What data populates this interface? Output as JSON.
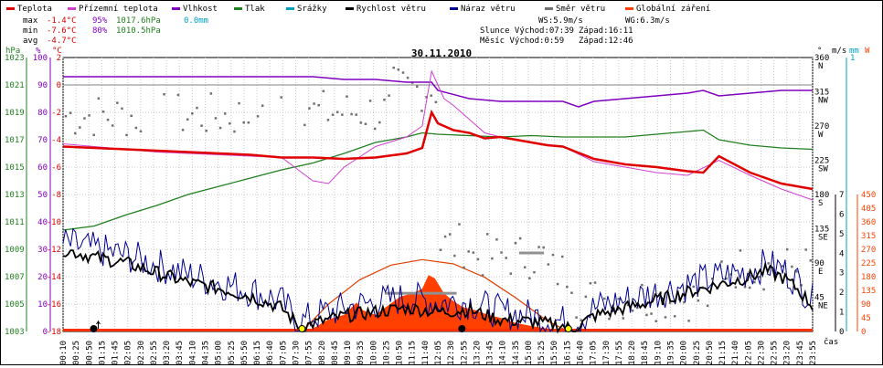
{
  "chart_data": {
    "type": "line",
    "title": "30.11.2010",
    "legend": [
      {
        "label": "Teplota",
        "color": "#e00000"
      },
      {
        "label": "Přízemní teplota",
        "color": "#d040d0"
      },
      {
        "label": "Vlhkost",
        "color": "#8000c0"
      },
      {
        "label": "Tlak",
        "color": "#208020"
      },
      {
        "label": "Srážky",
        "color": "#00a0c0"
      },
      {
        "label": "Rychlost větru",
        "color": "#000000"
      },
      {
        "label": "Náraz větru",
        "color": "#000090"
      },
      {
        "label": "Směr větru",
        "color": "#707070"
      },
      {
        "label": "Globální záření",
        "color": "#ff4000"
      }
    ],
    "stats": {
      "max": {
        "label": "max",
        "temp": "-1.4°C",
        "hum": "95%",
        "press": "1017.6hPa",
        "rain": "0.0mm"
      },
      "min": {
        "label": "min",
        "temp": "-7.6°C",
        "hum": "80%",
        "press": "1010.5hPa"
      },
      "avg": {
        "label": "avg",
        "temp": "-4.7°C"
      }
    },
    "info": {
      "ws": "WS:5.9m/s",
      "wg": "WG:6.3m/s",
      "sun_rise": "Slunce Východ:07:39",
      "sun_set": "Západ:16:11",
      "moon_rise": "Měsíc  Východ:0:59",
      "moon_set": "Západ:12:46"
    },
    "axes": {
      "hpa_unit": "hPa",
      "pct_unit": "%",
      "temp_unit": "°C",
      "hpa_ticks": [
        "1023",
        "1021",
        "1019",
        "1017",
        "1015",
        "1013",
        "1011",
        "1009",
        "1007",
        "1005",
        "1003"
      ],
      "pct_ticks": [
        "100",
        "90",
        "80",
        "70",
        "60",
        "50",
        "40",
        "30",
        "20",
        "10",
        "0"
      ],
      "temp_ticks": [
        "2",
        "0",
        "-2",
        "-4",
        "-6",
        "-8",
        "-10",
        "-12",
        "-14",
        "-16",
        "-18"
      ],
      "right_deg_unit": "°",
      "right_ms_unit": "m/s",
      "right_mm_unit": "mm",
      "right_w_unit": "W",
      "deg_ticks": [
        [
          "360",
          "N"
        ],
        [
          "315",
          "NW"
        ],
        [
          "270",
          "W"
        ],
        [
          "225",
          "SW"
        ],
        [
          "180",
          "S"
        ],
        [
          "135",
          "SE"
        ],
        [
          "90",
          "E"
        ],
        [
          "45",
          "NE"
        ]
      ],
      "ms_ticks": [
        "7",
        "6",
        "5",
        "4",
        "3",
        "2",
        "1",
        "0"
      ],
      "mm_ticks": [
        "1"
      ],
      "w_ticks": [
        "450",
        "405",
        "360",
        "315",
        "270",
        "225",
        "180",
        "135",
        "90",
        "45",
        "0"
      ],
      "x_label": "čas",
      "x_ticks": [
        "00:10",
        "00:25",
        "00:50",
        "01:15",
        "01:45",
        "02:05",
        "02:30",
        "02:55",
        "03:20",
        "03:45",
        "04:10",
        "04:35",
        "05:00",
        "05:25",
        "05:50",
        "06:15",
        "06:40",
        "07:05",
        "07:30",
        "07:55",
        "08:20",
        "08:45",
        "09:10",
        "09:35",
        "10:00",
        "10:25",
        "10:50",
        "11:15",
        "11:40",
        "12:05",
        "12:30",
        "12:55",
        "13:20",
        "13:45",
        "14:10",
        "14:35",
        "15:00",
        "15:25",
        "15:50",
        "16:15",
        "16:40",
        "17:05",
        "17:30",
        "17:55",
        "18:20",
        "18:45",
        "19:10",
        "19:35",
        "20:00",
        "20:25",
        "20:50",
        "21:15",
        "21:40",
        "22:05",
        "22:30",
        "22:55",
        "23:20",
        "23:45",
        "23:55"
      ]
    },
    "series": {
      "temperature": [
        [
          0,
          -4.5
        ],
        [
          1,
          -4.6
        ],
        [
          2,
          -4.7
        ],
        [
          3,
          -4.8
        ],
        [
          4,
          -4.9
        ],
        [
          5,
          -5.0
        ],
        [
          6,
          -5.1
        ],
        [
          7,
          -5.3
        ],
        [
          8,
          -5.3
        ],
        [
          9,
          -5.4
        ],
        [
          10,
          -5.3
        ],
        [
          11,
          -5.0
        ],
        [
          11.5,
          -4.6
        ],
        [
          11.8,
          -2.0
        ],
        [
          12,
          -2.8
        ],
        [
          12.5,
          -3.3
        ],
        [
          13,
          -3.5
        ],
        [
          13.5,
          -3.9
        ],
        [
          14,
          -3.8
        ],
        [
          14.5,
          -4.0
        ],
        [
          15,
          -4.2
        ],
        [
          15.5,
          -4.4
        ],
        [
          16,
          -4.5
        ],
        [
          17,
          -5.4
        ],
        [
          18,
          -5.8
        ],
        [
          19,
          -6.0
        ],
        [
          20,
          -6.3
        ],
        [
          20.5,
          -6.4
        ],
        [
          21,
          -5.2
        ],
        [
          21.5,
          -5.8
        ],
        [
          22,
          -6.4
        ],
        [
          23,
          -7.2
        ],
        [
          24,
          -7.6
        ]
      ],
      "ground_temperature": [
        [
          0,
          -4.3
        ],
        [
          1,
          -4.5
        ],
        [
          2,
          -4.7
        ],
        [
          3,
          -4.9
        ],
        [
          4,
          -5.0
        ],
        [
          5,
          -5.1
        ],
        [
          6,
          -5.2
        ],
        [
          7,
          -5.3
        ],
        [
          8,
          -7.0
        ],
        [
          8.5,
          -7.2
        ],
        [
          9,
          -6.0
        ],
        [
          10,
          -4.5
        ],
        [
          11,
          -3.8
        ],
        [
          11.5,
          -3.0
        ],
        [
          11.8,
          1.0
        ],
        [
          12.2,
          -1.0
        ],
        [
          12.5,
          -1.5
        ],
        [
          13,
          -2.5
        ],
        [
          13.5,
          -3.5
        ],
        [
          14,
          -3.8
        ],
        [
          15,
          -4.2
        ],
        [
          16,
          -4.5
        ],
        [
          17,
          -5.6
        ],
        [
          18,
          -6.0
        ],
        [
          19,
          -6.4
        ],
        [
          20,
          -6.6
        ],
        [
          21,
          -5.5
        ],
        [
          22,
          -6.6
        ],
        [
          23,
          -7.6
        ],
        [
          24,
          -8.4
        ]
      ],
      "humidity": [
        [
          0,
          93
        ],
        [
          1,
          93
        ],
        [
          2,
          93
        ],
        [
          3,
          93
        ],
        [
          4,
          93
        ],
        [
          5,
          93
        ],
        [
          6,
          93
        ],
        [
          7,
          93
        ],
        [
          8,
          93
        ],
        [
          9,
          92
        ],
        [
          10,
          92
        ],
        [
          11,
          91
        ],
        [
          11.8,
          91
        ],
        [
          12,
          88
        ],
        [
          13,
          85
        ],
        [
          14,
          84
        ],
        [
          15,
          84
        ],
        [
          16,
          84
        ],
        [
          16.5,
          82
        ],
        [
          17,
          84
        ],
        [
          18,
          85
        ],
        [
          19,
          86
        ],
        [
          20,
          87
        ],
        [
          20.5,
          88
        ],
        [
          21,
          86
        ],
        [
          22,
          87
        ],
        [
          23,
          88
        ],
        [
          24,
          88
        ]
      ],
      "pressure": [
        [
          0,
          1010.4
        ],
        [
          1,
          1010.7
        ],
        [
          2,
          1011.5
        ],
        [
          3,
          1012.2
        ],
        [
          4,
          1013.0
        ],
        [
          5,
          1013.6
        ],
        [
          6,
          1014.2
        ],
        [
          7,
          1014.8
        ],
        [
          8,
          1015.3
        ],
        [
          9,
          1016.0
        ],
        [
          10,
          1016.8
        ],
        [
          11,
          1017.2
        ],
        [
          11.5,
          1017.5
        ],
        [
          12,
          1017.4
        ],
        [
          13,
          1017.3
        ],
        [
          14,
          1017.2
        ],
        [
          15,
          1017.3
        ],
        [
          16,
          1017.2
        ],
        [
          17,
          1017.2
        ],
        [
          18,
          1017.2
        ],
        [
          19,
          1017.4
        ],
        [
          20,
          1017.6
        ],
        [
          20.5,
          1017.7
        ],
        [
          21,
          1017.0
        ],
        [
          22,
          1016.6
        ],
        [
          23,
          1016.4
        ],
        [
          24,
          1016.3
        ]
      ],
      "solar_clear_sky": [
        [
          7.65,
          0
        ],
        [
          8.5,
          90
        ],
        [
          9.5,
          170
        ],
        [
          10.5,
          218
        ],
        [
          11.5,
          236
        ],
        [
          12.5,
          222
        ],
        [
          13.5,
          178
        ],
        [
          14.5,
          110
        ],
        [
          15.5,
          35
        ],
        [
          16.18,
          0
        ]
      ],
      "solar_radiation": [
        [
          7.65,
          0
        ],
        [
          8.0,
          10
        ],
        [
          8.5,
          40
        ],
        [
          9.0,
          55
        ],
        [
          9.4,
          95
        ],
        [
          9.6,
          70
        ],
        [
          10.0,
          55
        ],
        [
          10.4,
          85
        ],
        [
          10.8,
          115
        ],
        [
          11.2,
          125
        ],
        [
          11.5,
          140
        ],
        [
          11.7,
          185
        ],
        [
          11.9,
          175
        ],
        [
          12.2,
          125
        ],
        [
          12.5,
          100
        ],
        [
          12.8,
          80
        ],
        [
          13.2,
          70
        ],
        [
          13.6,
          55
        ],
        [
          14.0,
          45
        ],
        [
          14.5,
          28
        ],
        [
          15.0,
          18
        ],
        [
          15.5,
          10
        ],
        [
          16.18,
          0
        ]
      ],
      "wind_speed_avg": [
        [
          0,
          4.2
        ],
        [
          1,
          3.8
        ],
        [
          2,
          3.5
        ],
        [
          3,
          3.0
        ],
        [
          4,
          2.5
        ],
        [
          5,
          2.2
        ],
        [
          6,
          1.8
        ],
        [
          7,
          1.2
        ],
        [
          7.6,
          0.2
        ],
        [
          8,
          0.4
        ],
        [
          9,
          0.8
        ],
        [
          10,
          1.0
        ],
        [
          11,
          1.2
        ],
        [
          12,
          1.0
        ],
        [
          13,
          1.1
        ],
        [
          14,
          0.6
        ],
        [
          15,
          0.5
        ],
        [
          16,
          0.3
        ],
        [
          16.3,
          0.1
        ],
        [
          17,
          0.8
        ],
        [
          18,
          1.2
        ],
        [
          19,
          1.6
        ],
        [
          20,
          2.0
        ],
        [
          21,
          2.4
        ],
        [
          22,
          2.8
        ],
        [
          22.5,
          3.1
        ],
        [
          23,
          2.8
        ],
        [
          23.5,
          2.2
        ],
        [
          24,
          1.3
        ]
      ],
      "wind_gust_avg": [
        [
          0,
          4.5
        ],
        [
          1,
          4.2
        ],
        [
          2,
          3.9
        ],
        [
          3,
          3.4
        ],
        [
          4,
          2.9
        ],
        [
          5,
          2.5
        ],
        [
          6,
          2.1
        ],
        [
          7,
          1.5
        ],
        [
          7.6,
          0.4
        ],
        [
          8,
          0.8
        ],
        [
          9,
          1.2
        ],
        [
          10,
          1.5
        ],
        [
          11,
          1.7
        ],
        [
          12,
          1.5
        ],
        [
          13,
          1.5
        ],
        [
          14,
          1.0
        ],
        [
          15,
          0.8
        ],
        [
          16,
          0.5
        ],
        [
          16.3,
          0.3
        ],
        [
          17,
          1.2
        ],
        [
          18,
          1.6
        ],
        [
          19,
          2.0
        ],
        [
          20,
          2.4
        ],
        [
          21,
          2.8
        ],
        [
          22,
          3.1
        ],
        [
          22.5,
          3.4
        ],
        [
          23,
          3.2
        ],
        [
          23.5,
          2.6
        ],
        [
          24,
          1.6
        ]
      ]
    }
  }
}
